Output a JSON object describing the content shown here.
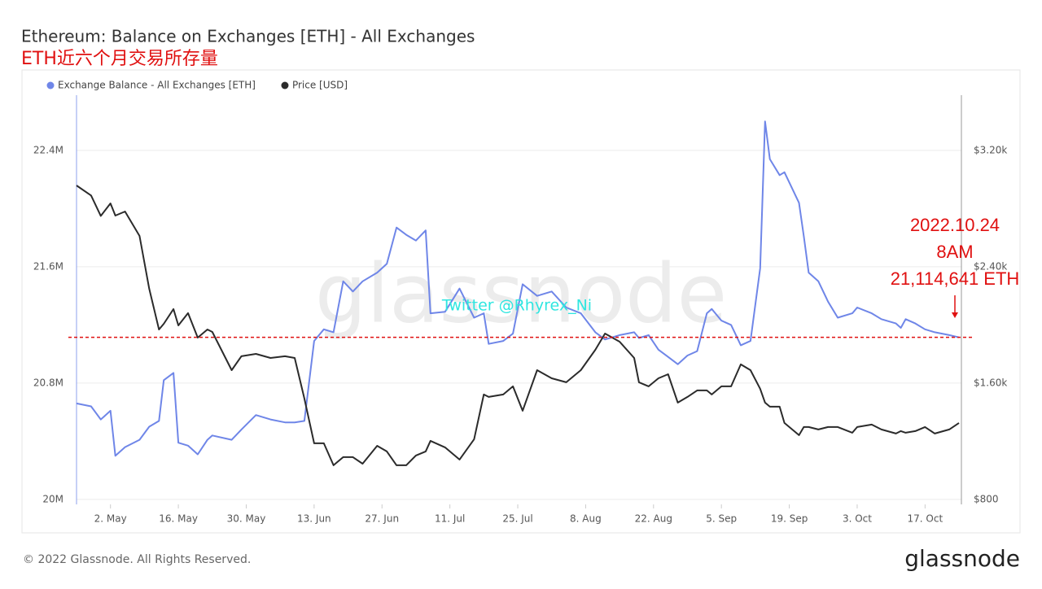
{
  "chart_data": {
    "type": "line",
    "title": "Ethereum: Balance on Exchanges [ETH] - All Exchanges",
    "subtitle": "ETH近六个月交易所存量",
    "x": [
      "2022-04-25",
      "2022-04-28",
      "2022-04-30",
      "2022-05-02",
      "2022-05-03",
      "2022-05-05",
      "2022-05-08",
      "2022-05-10",
      "2022-05-12",
      "2022-05-13",
      "2022-05-15",
      "2022-05-16",
      "2022-05-18",
      "2022-05-20",
      "2022-05-22",
      "2022-05-23",
      "2022-05-27",
      "2022-05-29",
      "2022-06-01",
      "2022-06-04",
      "2022-06-07",
      "2022-06-09",
      "2022-06-11",
      "2022-06-13",
      "2022-06-15",
      "2022-06-17",
      "2022-06-19",
      "2022-06-21",
      "2022-06-23",
      "2022-06-26",
      "2022-06-28",
      "2022-06-30",
      "2022-07-02",
      "2022-07-04",
      "2022-07-06",
      "2022-07-07",
      "2022-07-10",
      "2022-07-13",
      "2022-07-16",
      "2022-07-18",
      "2022-07-19",
      "2022-07-22",
      "2022-07-24",
      "2022-07-26",
      "2022-07-29",
      "2022-08-01",
      "2022-08-04",
      "2022-08-07",
      "2022-08-10",
      "2022-08-12",
      "2022-08-15",
      "2022-08-18",
      "2022-08-19",
      "2022-08-21",
      "2022-08-23",
      "2022-08-25",
      "2022-08-27",
      "2022-08-29",
      "2022-08-31",
      "2022-09-02",
      "2022-09-03",
      "2022-09-05",
      "2022-09-07",
      "2022-09-09",
      "2022-09-11",
      "2022-09-13",
      "2022-09-14",
      "2022-09-15",
      "2022-09-17",
      "2022-09-18",
      "2022-09-21",
      "2022-09-22",
      "2022-09-23",
      "2022-09-25",
      "2022-09-27",
      "2022-09-29",
      "2022-10-02",
      "2022-10-03",
      "2022-10-06",
      "2022-10-08",
      "2022-10-11",
      "2022-10-12",
      "2022-10-13",
      "2022-10-15",
      "2022-10-17",
      "2022-10-19",
      "2022-10-22",
      "2022-10-24"
    ],
    "series": [
      {
        "name": "Exchange Balance - All Exchanges [ETH]",
        "color": "#6f86e8",
        "axis": "y",
        "values": [
          20660000,
          20640000,
          20550000,
          20610000,
          20300000,
          20360000,
          20410000,
          20500000,
          20540000,
          20820000,
          20870000,
          20390000,
          20370000,
          20310000,
          20410000,
          20440000,
          20410000,
          20480000,
          20580000,
          20550000,
          20530000,
          20530000,
          20540000,
          21090000,
          21170000,
          21150000,
          21500000,
          21430000,
          21500000,
          21560000,
          21620000,
          21870000,
          21820000,
          21780000,
          21850000,
          21280000,
          21290000,
          21450000,
          21250000,
          21280000,
          21070000,
          21090000,
          21140000,
          21480000,
          21400000,
          21430000,
          21320000,
          21280000,
          21150000,
          21100000,
          21130000,
          21150000,
          21110000,
          21130000,
          21030000,
          20980000,
          20930000,
          20990000,
          21020000,
          21280000,
          21310000,
          21230000,
          21200000,
          21060000,
          21090000,
          21590000,
          22600000,
          22340000,
          22230000,
          22250000,
          22040000,
          21810000,
          21560000,
          21500000,
          21360000,
          21250000,
          21280000,
          21320000,
          21280000,
          21240000,
          21210000,
          21180000,
          21240000,
          21210000,
          21170000,
          21150000,
          21130000,
          21114641
        ]
      },
      {
        "name": "Price [USD]",
        "color": "#2b2b2b",
        "axis": "y2",
        "values": [
          2959,
          2890,
          2750,
          2836,
          2752,
          2780,
          2612,
          2249,
          1969,
          2008,
          2109,
          1997,
          2081,
          1913,
          1969,
          1952,
          1689,
          1785,
          1801,
          1773,
          1785,
          1773,
          1494,
          1186,
          1186,
          1035,
          1091,
          1091,
          1046,
          1169,
          1130,
          1035,
          1035,
          1102,
          1130,
          1203,
          1158,
          1074,
          1214,
          1522,
          1505,
          1522,
          1578,
          1410,
          1689,
          1633,
          1606,
          1689,
          1829,
          1941,
          1885,
          1773,
          1606,
          1578,
          1633,
          1661,
          1466,
          1505,
          1550,
          1550,
          1522,
          1578,
          1578,
          1729,
          1689,
          1561,
          1466,
          1438,
          1438,
          1326,
          1242,
          1298,
          1298,
          1281,
          1298,
          1298,
          1259,
          1298,
          1315,
          1281,
          1253,
          1270,
          1259,
          1270,
          1298,
          1253,
          1281,
          1326
        ]
      }
    ],
    "xlim": [
      "2022-04-25",
      "2022-10-25"
    ],
    "xticks": [
      {
        "value": "2022-05-02",
        "label": "2. May"
      },
      {
        "value": "2022-05-16",
        "label": "16. May"
      },
      {
        "value": "2022-05-30",
        "label": "30. May"
      },
      {
        "value": "2022-06-13",
        "label": "13. Jun"
      },
      {
        "value": "2022-06-27",
        "label": "27. Jun"
      },
      {
        "value": "2022-07-11",
        "label": "11. Jul"
      },
      {
        "value": "2022-07-25",
        "label": "25. Jul"
      },
      {
        "value": "2022-08-08",
        "label": "8. Aug"
      },
      {
        "value": "2022-08-22",
        "label": "22. Aug"
      },
      {
        "value": "2022-09-05",
        "label": "5. Sep"
      },
      {
        "value": "2022-09-19",
        "label": "19. Sep"
      },
      {
        "value": "2022-10-03",
        "label": "3. Oct"
      },
      {
        "value": "2022-10-17",
        "label": "17. Oct"
      }
    ],
    "ylim": [
      19966000,
      22780000
    ],
    "yticks": [
      {
        "value": 20000000,
        "label": "20M"
      },
      {
        "value": 20800000,
        "label": "20.8M"
      },
      {
        "value": 21600000,
        "label": "21.6M"
      },
      {
        "value": 22400000,
        "label": "22.4M"
      }
    ],
    "y2lim": [
      766,
      3580
    ],
    "y2ticks": [
      {
        "value": 800,
        "label": "$800"
      },
      {
        "value": 1600,
        "label": "$1.60k"
      },
      {
        "value": 2400,
        "label": "$2.40k"
      },
      {
        "value": 3200,
        "label": "$3.20k"
      }
    ],
    "grid": true,
    "legend": "top-left",
    "annotations": [
      "2022.10.24",
      "8AM",
      "21,114,641 ETH"
    ],
    "watermark": "glassnode",
    "credit": "Twitter @Rhyrex_Ni"
  },
  "footer": {
    "copyright": "© 2022 Glassnode. All Rights Reserved.",
    "brand": "glassnode"
  }
}
